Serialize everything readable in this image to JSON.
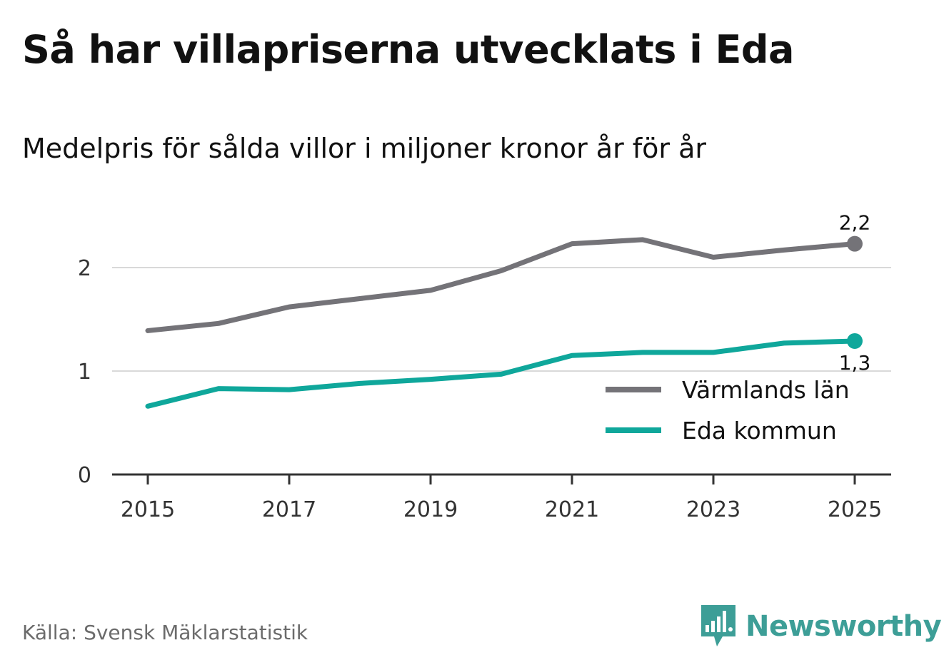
{
  "header": {
    "title": "Så har villapriserna utvecklats i Eda",
    "subtitle": "Medelpris för sålda villor i miljoner kronor år för år"
  },
  "footer": {
    "source": "Källa: Svensk Mäklarstatistik",
    "brand": "Newsworthy"
  },
  "colors": {
    "varmland": "#747378",
    "eda": "#0fa79b",
    "gridline": "#d9d9d9",
    "axis": "#333333",
    "brand": "#3d9e97"
  },
  "chart_data": {
    "type": "line",
    "x": [
      2015,
      2016,
      2017,
      2018,
      2019,
      2020,
      2021,
      2022,
      2023,
      2024,
      2025
    ],
    "x_ticks": [
      "2015",
      "2017",
      "2019",
      "2021",
      "2023",
      "2025"
    ],
    "y_ticks": [
      "0",
      "1",
      "2"
    ],
    "ylim": [
      0,
      2.5
    ],
    "grid": true,
    "legend_position": "bottom-right",
    "series": [
      {
        "name": "Värmlands län",
        "color": "#747378",
        "values": [
          1.39,
          1.46,
          1.62,
          1.7,
          1.78,
          1.97,
          2.23,
          2.27,
          2.1,
          2.17,
          2.23
        ],
        "end_label": "2,2",
        "end_label_position": "above"
      },
      {
        "name": "Eda kommun",
        "color": "#0fa79b",
        "values": [
          0.66,
          0.83,
          0.82,
          0.88,
          0.92,
          0.97,
          1.15,
          1.18,
          1.18,
          1.27,
          1.29
        ],
        "end_label": "1,3",
        "end_label_position": "below"
      }
    ]
  }
}
